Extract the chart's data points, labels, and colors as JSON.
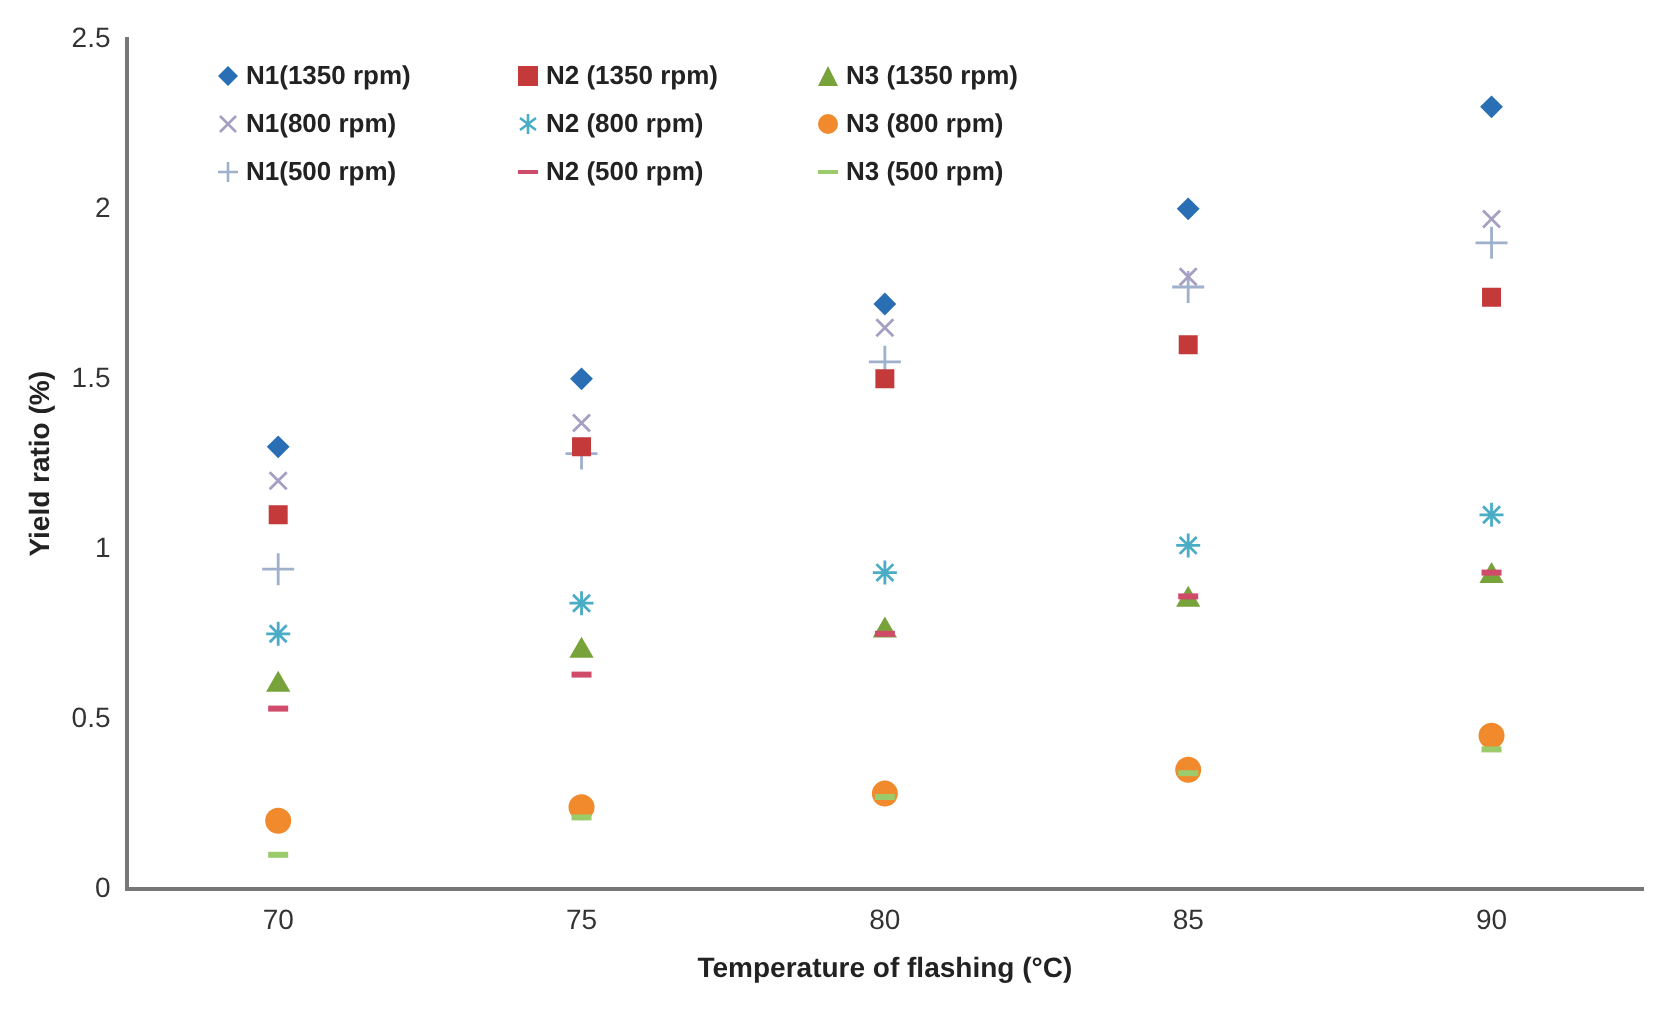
{
  "chart_data": {
    "type": "scatter",
    "xlabel": "Temperature of flashing (°C)",
    "ylabel": "Yield ratio (%)",
    "categories": [
      "70",
      "75",
      "80",
      "85",
      "90"
    ],
    "ylim": [
      0,
      2.5
    ],
    "yticks": [
      0,
      0.5,
      1,
      1.5,
      2,
      2.5
    ],
    "grid": false,
    "legend": "top left",
    "series": [
      {
        "name": "N1(1350 rpm)",
        "color": "#2a6fb5",
        "marker": "diamond",
        "values": [
          1.3,
          1.5,
          1.72,
          2.0,
          2.3
        ]
      },
      {
        "name": "N2 (1350 rpm)",
        "color": "#c43a3a",
        "marker": "square",
        "values": [
          1.1,
          1.3,
          1.5,
          1.6,
          1.74
        ]
      },
      {
        "name": "N3 (1350 rpm)",
        "color": "#77a33a",
        "marker": "triangle",
        "values": [
          0.6,
          0.7,
          0.76,
          0.85,
          0.92
        ]
      },
      {
        "name": "N1(800 rpm)",
        "color": "#a69fc2",
        "marker": "x",
        "values": [
          1.2,
          1.37,
          1.65,
          1.8,
          1.97
        ]
      },
      {
        "name": "N2 (800 rpm)",
        "color": "#4bacc6",
        "marker": "cross",
        "values": [
          0.75,
          0.84,
          0.93,
          1.01,
          1.1
        ]
      },
      {
        "name": "N3 (800 rpm)",
        "color": "#f08a2c",
        "marker": "circle",
        "values": [
          0.2,
          0.24,
          0.28,
          0.35,
          0.45
        ]
      },
      {
        "name": "N1(500 rpm)",
        "color": "#9fb0cc",
        "marker": "plus",
        "values": [
          0.94,
          1.28,
          1.55,
          1.77,
          1.9
        ]
      },
      {
        "name": "N2 (500 rpm)",
        "color": "#d04a6a",
        "values": [
          0.53,
          0.63,
          0.75,
          0.86,
          0.93
        ]
      },
      {
        "name": "N3 (500 rpm)",
        "color": "#9bcb6a",
        "values": [
          0.1,
          0.21,
          0.27,
          0.34,
          0.41
        ]
      }
    ]
  }
}
